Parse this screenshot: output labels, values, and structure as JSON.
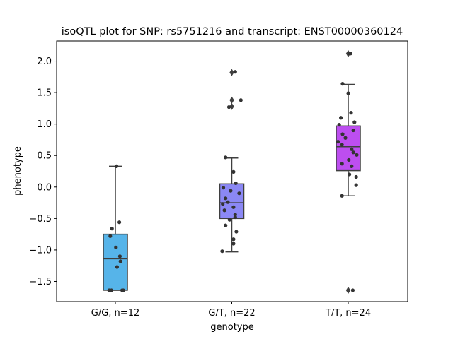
{
  "chart_data": {
    "type": "box",
    "title": "isoQTL plot for SNP: rs5751216 and transcript: ENST00000360124",
    "xlabel": "genotype",
    "ylabel": "phenotype",
    "ylim": [
      -1.82,
      2.32
    ],
    "yticks": [
      -1.5,
      -1.0,
      -0.5,
      0.0,
      0.5,
      1.0,
      1.5,
      2.0
    ],
    "ytick_labels": [
      "−1.5",
      "−1.0",
      "−0.5",
      "0.0",
      "0.5",
      "1.0",
      "1.5",
      "2.0"
    ],
    "grid": false,
    "categories": [
      "G/G, n=12",
      "G/T, n=22",
      "T/T, n=24"
    ],
    "series": [
      {
        "color": "#56b4e9",
        "box": {
          "whisker_low": -1.64,
          "q1": -1.64,
          "median": -1.14,
          "q3": -0.75,
          "whisker_high": 0.33
        },
        "outliers": [],
        "points": [
          {
            "dx": -0.22,
            "y": -1.64
          },
          {
            "dx": -0.14,
            "y": -1.64
          },
          {
            "dx": 0.24,
            "y": -1.64
          },
          {
            "dx": -0.18,
            "y": -0.78
          },
          {
            "dx": -0.12,
            "y": -0.66
          },
          {
            "dx": 0.14,
            "y": -0.56
          },
          {
            "dx": 0.02,
            "y": -0.96
          },
          {
            "dx": 0.16,
            "y": -1.1
          },
          {
            "dx": 0.18,
            "y": -1.18
          },
          {
            "dx": 0.06,
            "y": -1.27
          },
          {
            "dx": 0.04,
            "y": 0.33
          },
          {
            "dx": 0.28,
            "y": -1.64
          }
        ]
      },
      {
        "color": "#8b88f5",
        "box": {
          "whisker_low": -1.03,
          "q1": -0.5,
          "median": -0.25,
          "q3": 0.05,
          "whisker_high": 0.46
        },
        "outliers": [
          1.82,
          1.38,
          1.28
        ],
        "points": [
          {
            "dx": 0.12,
            "y": 1.83
          },
          {
            "dx": 0.32,
            "y": 1.38
          },
          {
            "dx": -0.1,
            "y": 1.27
          },
          {
            "dx": -0.22,
            "y": 0.47
          },
          {
            "dx": 0.06,
            "y": 0.24
          },
          {
            "dx": 0.14,
            "y": 0.06
          },
          {
            "dx": -0.3,
            "y": -0.01
          },
          {
            "dx": -0.04,
            "y": -0.06
          },
          {
            "dx": 0.26,
            "y": -0.1
          },
          {
            "dx": -0.22,
            "y": -0.18
          },
          {
            "dx": -0.14,
            "y": -0.24
          },
          {
            "dx": -0.32,
            "y": -0.27
          },
          {
            "dx": 0.06,
            "y": -0.32
          },
          {
            "dx": -0.26,
            "y": -0.37
          },
          {
            "dx": 0.12,
            "y": -0.44
          },
          {
            "dx": 0.12,
            "y": -0.48
          },
          {
            "dx": -0.08,
            "y": -0.52
          },
          {
            "dx": -0.22,
            "y": -0.61
          },
          {
            "dx": 0.16,
            "y": -0.71
          },
          {
            "dx": 0.06,
            "y": -0.83
          },
          {
            "dx": 0.06,
            "y": -0.9
          },
          {
            "dx": -0.34,
            "y": -1.02
          }
        ]
      },
      {
        "color": "#bd4ef0",
        "box": {
          "whisker_low": -0.14,
          "q1": 0.26,
          "median": 0.64,
          "q3": 0.97,
          "whisker_high": 1.63
        },
        "outliers": [
          2.12,
          -1.64
        ],
        "points": [
          {
            "dx": 0.08,
            "y": 2.12
          },
          {
            "dx": -0.2,
            "y": 1.64
          },
          {
            "dx": 0.0,
            "y": 1.49
          },
          {
            "dx": 0.1,
            "y": 1.18
          },
          {
            "dx": -0.26,
            "y": 1.1
          },
          {
            "dx": 0.22,
            "y": 1.03
          },
          {
            "dx": -0.32,
            "y": 0.99
          },
          {
            "dx": 0.18,
            "y": 0.9
          },
          {
            "dx": -0.2,
            "y": 0.84
          },
          {
            "dx": -0.1,
            "y": 0.78
          },
          {
            "dx": -0.36,
            "y": 0.72
          },
          {
            "dx": -0.22,
            "y": 0.67
          },
          {
            "dx": 0.12,
            "y": 0.6
          },
          {
            "dx": 0.18,
            "y": 0.55
          },
          {
            "dx": 0.3,
            "y": 0.51
          },
          {
            "dx": 0.02,
            "y": 0.43
          },
          {
            "dx": -0.22,
            "y": 0.37
          },
          {
            "dx": 0.12,
            "y": 0.33
          },
          {
            "dx": 0.04,
            "y": 0.2
          },
          {
            "dx": 0.28,
            "y": 0.16
          },
          {
            "dx": 0.28,
            "y": 0.03
          },
          {
            "dx": -0.22,
            "y": -0.14
          },
          {
            "dx": 0.16,
            "y": -1.64
          },
          {
            "dx": 0.04,
            "y": 2.12
          }
        ]
      }
    ]
  }
}
